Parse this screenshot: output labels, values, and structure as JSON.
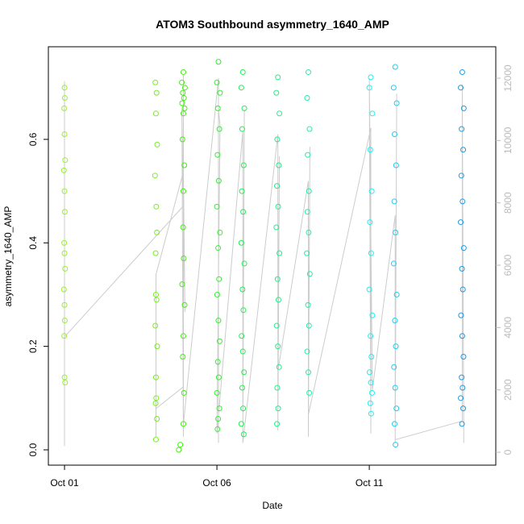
{
  "chart_data": {
    "type": "scatter",
    "title": "ATOM3 Southbound asymmetry_1640_AMP",
    "x_label": "Date",
    "y_label": "asymmetry_1640_AMP",
    "xlim": [
      0.47,
      15.15
    ],
    "xticks": [
      {
        "value": 1,
        "label": "Oct 01"
      },
      {
        "value": 6,
        "label": "Oct 06"
      },
      {
        "value": 11,
        "label": "Oct 11"
      }
    ],
    "ylim": [
      -0.0296,
      0.779
    ],
    "yticks": [
      {
        "value": 0,
        "label": "0.0"
      },
      0.2,
      0.4,
      0.6
    ],
    "y2lim": [
      -414,
      13008
    ],
    "y2ticks": [
      0,
      2000,
      4000,
      6000,
      8000,
      10000,
      12000
    ],
    "y2_color": "#bbbbbb",
    "series": [
      {
        "color": "#99ee33",
        "x": [
          1.0,
          1.01,
          0.99,
          1.0,
          1.02,
          0.98,
          1.0,
          1.01,
          0.99,
          1.0,
          1.02,
          0.98,
          1.0,
          1.01,
          0.99,
          1.0,
          1.02
        ],
        "values": [
          0.7,
          0.68,
          0.66,
          0.61,
          0.56,
          0.54,
          0.5,
          0.46,
          0.4,
          0.38,
          0.35,
          0.31,
          0.28,
          0.25,
          0.22,
          0.14,
          0.13
        ]
      },
      {
        "color": "#77ee22",
        "x": [
          3.98,
          4.02,
          4.0,
          4.04,
          3.97,
          4.01,
          4.03,
          3.99,
          4.0,
          4.02,
          3.98,
          4.04,
          4.0,
          4.01,
          3.99,
          4.03,
          4.0
        ],
        "values": [
          0.71,
          0.69,
          0.65,
          0.59,
          0.53,
          0.47,
          0.42,
          0.38,
          0.3,
          0.29,
          0.24,
          0.2,
          0.14,
          0.1,
          0.09,
          0.06,
          0.02
        ]
      },
      {
        "color": "#44ee11",
        "x": [
          4.9,
          4.85,
          4.95,
          4.88,
          4.92,
          4.86,
          4.94,
          4.9,
          4.87,
          4.93,
          4.9,
          4.89,
          4.91,
          4.86,
          4.94,
          4.9,
          4.88,
          4.92,
          4.9,
          4.8,
          4.75
        ],
        "values": [
          0.73,
          0.71,
          0.7,
          0.69,
          0.68,
          0.67,
          0.66,
          0.65,
          0.6,
          0.55,
          0.5,
          0.43,
          0.37,
          0.32,
          0.28,
          0.22,
          0.18,
          0.11,
          0.05,
          0.01,
          0.0
        ]
      },
      {
        "color": "#33ee33",
        "x": [
          6.05,
          6.0,
          6.1,
          6.03,
          6.08,
          6.02,
          6.06,
          6.0,
          6.1,
          6.04,
          6.07,
          6.01,
          6.05,
          6.09,
          6.03,
          6.06,
          6.0,
          6.08,
          6.04,
          6.02
        ],
        "values": [
          0.75,
          0.71,
          0.69,
          0.66,
          0.62,
          0.57,
          0.52,
          0.47,
          0.42,
          0.39,
          0.33,
          0.3,
          0.25,
          0.21,
          0.17,
          0.14,
          0.11,
          0.08,
          0.06,
          0.04
        ]
      },
      {
        "color": "#22ee55",
        "x": [
          6.85,
          6.8,
          6.9,
          6.83,
          6.88,
          6.82,
          6.86,
          6.8,
          6.9,
          6.84,
          6.87,
          6.81,
          6.85,
          6.89,
          6.83,
          6.86,
          6.8,
          6.88
        ],
        "values": [
          0.73,
          0.7,
          0.66,
          0.62,
          0.55,
          0.5,
          0.46,
          0.4,
          0.36,
          0.31,
          0.27,
          0.22,
          0.19,
          0.15,
          0.12,
          0.08,
          0.05,
          0.03
        ]
      },
      {
        "color": "#22ee88",
        "x": [
          8.0,
          7.95,
          8.05,
          7.98,
          8.03,
          7.97,
          8.01,
          7.95,
          8.05,
          7.99,
          8.02,
          7.96,
          8.0,
          8.04,
          7.98,
          8.01,
          7.97
        ],
        "values": [
          0.72,
          0.69,
          0.65,
          0.6,
          0.55,
          0.51,
          0.47,
          0.43,
          0.38,
          0.33,
          0.29,
          0.24,
          0.2,
          0.16,
          0.12,
          0.08,
          0.05
        ]
      },
      {
        "color": "#22eeaa",
        "x": [
          9.0,
          8.96,
          9.04,
          8.98,
          9.02,
          8.97,
          9.01,
          8.95,
          9.05,
          8.99,
          9.02,
          8.96,
          9.0,
          9.03
        ],
        "values": [
          0.73,
          0.68,
          0.62,
          0.57,
          0.5,
          0.46,
          0.42,
          0.38,
          0.34,
          0.28,
          0.24,
          0.19,
          0.15,
          0.11
        ]
      },
      {
        "color": "#22eeee",
        "x": [
          11.05,
          11.0,
          11.1,
          11.03,
          11.08,
          11.02,
          11.06,
          11.0,
          11.1,
          11.04,
          11.07,
          11.01,
          11.05,
          11.09,
          11.03,
          11.06
        ],
        "values": [
          0.72,
          0.7,
          0.65,
          0.58,
          0.5,
          0.44,
          0.38,
          0.31,
          0.26,
          0.22,
          0.18,
          0.15,
          0.13,
          0.11,
          0.09,
          0.07
        ]
      },
      {
        "color": "#22ccee",
        "x": [
          11.85,
          11.8,
          11.9,
          11.83,
          11.88,
          11.82,
          11.86,
          11.8,
          11.9,
          11.84,
          11.87,
          11.81,
          11.85,
          11.89,
          11.83,
          11.86
        ],
        "values": [
          0.74,
          0.7,
          0.67,
          0.61,
          0.55,
          0.48,
          0.42,
          0.36,
          0.3,
          0.25,
          0.2,
          0.16,
          0.12,
          0.08,
          0.05,
          0.01
        ]
      },
      {
        "color": "#2299dd",
        "x": [
          14.05,
          14.0,
          14.1,
          14.03,
          14.08,
          14.02,
          14.06,
          14.0,
          14.1,
          14.04,
          14.07,
          14.01,
          14.05,
          14.09,
          14.03,
          14.06,
          14.0,
          14.08,
          14.04
        ],
        "values": [
          0.73,
          0.7,
          0.66,
          0.62,
          0.58,
          0.53,
          0.48,
          0.44,
          0.39,
          0.35,
          0.31,
          0.26,
          0.22,
          0.18,
          0.14,
          0.12,
          0.1,
          0.08,
          0.05
        ]
      },
      {
        "color": "#cccccc",
        "axis": "y2",
        "x": [
          1.0,
          1.0,
          1.0,
          1.0,
          4.9,
          4.9,
          4.9,
          4.85,
          4.95,
          4.9,
          4.0,
          4.0,
          4.0,
          4.9,
          4.9,
          6.05,
          6.05,
          6.05,
          6.1,
          6.0,
          6.85,
          6.85,
          6.9,
          6.85,
          8.0,
          8.0,
          8.05,
          8.0,
          9.0,
          9.0,
          9.05,
          9.0,
          11.05,
          11.05,
          11.0,
          11.1,
          11.85,
          11.85,
          11.9,
          11.85,
          14.05,
          14.05,
          14.1,
          14.05
        ],
        "values": [
          200,
          11900,
          300,
          3700,
          7900,
          12100,
          500,
          11000,
          4500,
          9000,
          5700,
          500,
          1400,
          2100,
          900,
          12000,
          300,
          11000,
          10500,
          600,
          10300,
          1500,
          11000,
          300,
          10200,
          700,
          9500,
          2600,
          8700,
          500,
          9800,
          1200,
          10400,
          600,
          12000,
          2000,
          7600,
          300,
          11500,
          400,
          1000,
          11800,
          300,
          11000
        ]
      }
    ]
  }
}
